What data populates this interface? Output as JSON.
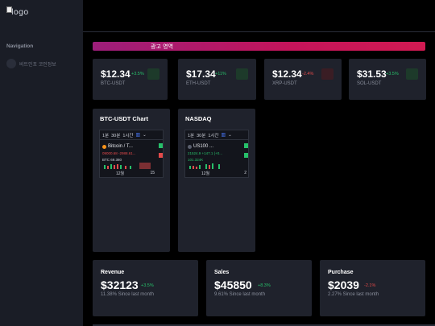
{
  "sidebar": {
    "logo_alt": "logo",
    "nav_heading": "Navigation",
    "items": [
      {
        "label": "비트인포 코인정보"
      }
    ]
  },
  "ad": {
    "label": "광고 영역"
  },
  "tickers": [
    {
      "price": "$12.34",
      "change": "+3.5%",
      "direction": "up",
      "symbol": "BTC-USDT"
    },
    {
      "price": "$17.34",
      "change": "+11%",
      "direction": "up",
      "symbol": "ETH-USDT"
    },
    {
      "price": "$12.34",
      "change": "-2.4%",
      "direction": "down",
      "symbol": "XRP-USDT"
    },
    {
      "price": "$31.53",
      "change": "+3.5%",
      "direction": "up",
      "symbol": "SOL-USDT"
    }
  ],
  "charts": [
    {
      "title": "BTC-USDT Chart",
      "intervals": [
        "1분",
        "30분",
        "1시간"
      ],
      "symbol": "Bitcoin / T...",
      "vals": "09000.68 -2988.61...",
      "row2": "BTC 69.380",
      "x_left": "12월",
      "x_right": "15"
    },
    {
      "title": "NASDAQ",
      "intervals": [
        "1분",
        "30분",
        "1시간"
      ],
      "symbol": "US100 ...",
      "vals": "21524.9 +147.1 (+0...",
      "row2": "101.324K",
      "x_left": "12월",
      "x_right": "2"
    }
  ],
  "stats": [
    {
      "title": "Revenue",
      "value": "$32123",
      "change": "+3.5%",
      "direction": "up",
      "sub": "11.38% Since last month"
    },
    {
      "title": "Sales",
      "value": "$45850",
      "change": "+8.3%",
      "direction": "up",
      "sub": "9.61% Since last month"
    },
    {
      "title": "Purchase",
      "value": "$2039",
      "change": "-2.1%",
      "direction": "down",
      "sub": "2.27% Since last month"
    }
  ],
  "colors": {
    "up": "#27c06a",
    "down": "#e34a4a",
    "ad_gradient_start": "#9c1e7a",
    "ad_gradient_end": "#d11a52"
  },
  "icons": {
    "nav_item": "circle-avatar-icon",
    "widget_menu": "chevron-down-icon",
    "coin": "bitcoin-icon"
  }
}
